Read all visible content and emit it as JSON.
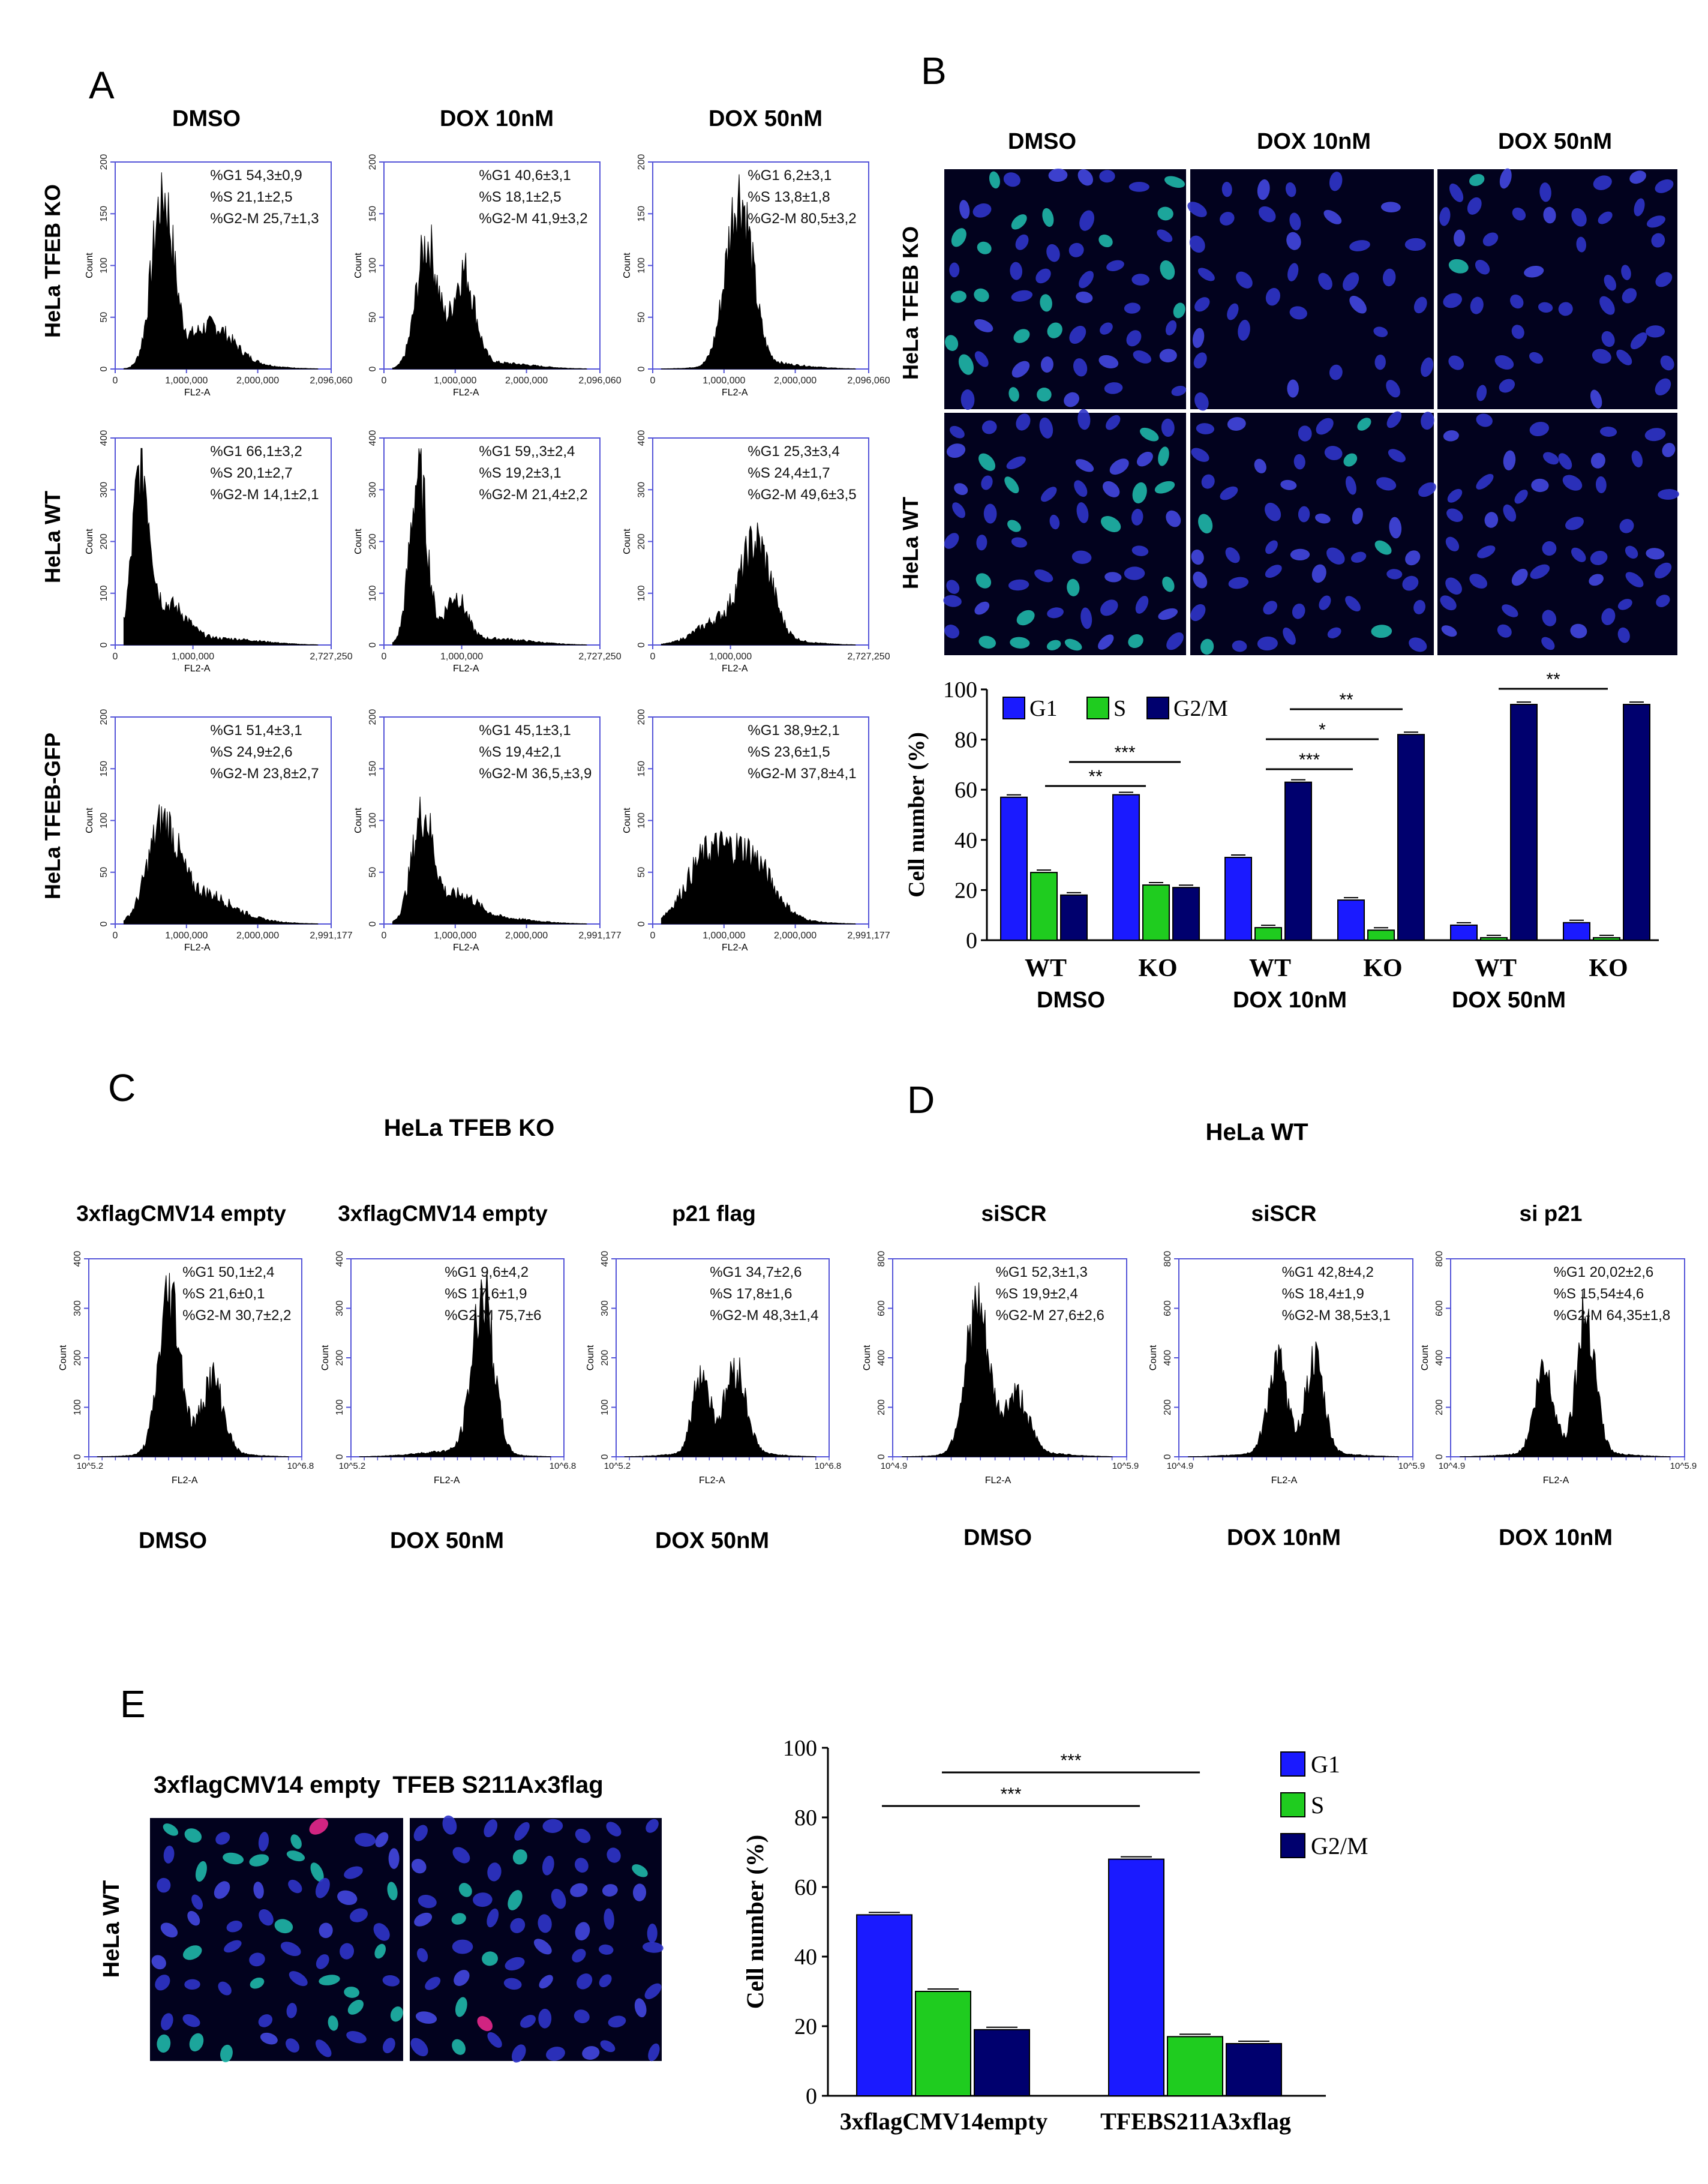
{
  "panels": {
    "A": {
      "letter": "A",
      "columns": [
        "DMSO",
        "DOX 10nM",
        "DOX 50nM"
      ],
      "rows": [
        {
          "label": "HeLa TFEB KO",
          "ymax": 200,
          "yticks": [
            "0",
            "50",
            "100",
            "150",
            "200"
          ],
          "xticks": [
            "0",
            "1,000,000",
            "2,000,000",
            "2,096,060"
          ],
          "xlabel": "FL2-A",
          "ylabel": "Count",
          "hists": [
            {
              "stats": [
                "%G1 54,3±0,9",
                "%S 21,1±2,5",
                "%G2-M 25,7±1,3"
              ],
              "peaks": [
                [
                  0.22,
                  0.82,
                  0.05
                ],
                [
                  0.44,
                  0.18,
                  0.1
                ]
              ]
            },
            {
              "stats": [
                "%G1 40,6±3,1",
                "%S 18,1±2,5",
                "%G2-M 41,9±3,2"
              ],
              "peaks": [
                [
                  0.2,
                  0.6,
                  0.05
                ],
                [
                  0.37,
                  0.45,
                  0.05
                ]
              ]
            },
            {
              "stats": [
                "%G1 6,2±3,1",
                "%S 13,8±1,8",
                "%G2-M 80,5±3,2"
              ],
              "peaks": [
                [
                  0.4,
                  0.82,
                  0.06
                ]
              ]
            }
          ]
        },
        {
          "label": "HeLa WT",
          "ymax": 400,
          "yticks": [
            "0",
            "100",
            "200",
            "300",
            "400"
          ],
          "xticks": [
            "0",
            "1,000,000",
            "2,727,250"
          ],
          "xlabel": "FL2-A",
          "ylabel": "Count",
          "hists": [
            {
              "stats": [
                "%G1 66,1±3,2",
                "%S 20,1±2,7",
                "%G2-M 14,1±2,1"
              ],
              "peaks": [
                [
                  0.12,
                  0.82,
                  0.04
                ],
                [
                  0.25,
                  0.18,
                  0.08
                ]
              ]
            },
            {
              "stats": [
                "%G1 59,,3±2,4",
                "%S 19,2±3,1",
                "%G2-M 21,4±2,2"
              ],
              "peaks": [
                [
                  0.16,
                  0.82,
                  0.04
                ],
                [
                  0.33,
                  0.22,
                  0.05
                ]
              ]
            },
            {
              "stats": [
                "%G1 25,3±3,4",
                "%S 24,4±1,7",
                "%G2-M 49,6±3,5"
              ],
              "peaks": [
                [
                  0.3,
                  0.1,
                  0.1
                ],
                [
                  0.48,
                  0.45,
                  0.07
                ]
              ]
            }
          ]
        },
        {
          "label": "HeLa TFEB-GFP",
          "ymax": 200,
          "yticks": [
            "0",
            "50",
            "100",
            "150",
            "200"
          ],
          "xticks": [
            "0",
            "1,000,000",
            "2,000,000",
            "2,991,177"
          ],
          "xlabel": "FL2-A",
          "ylabel": "Count",
          "hists": [
            {
              "stats": [
                "%G1 51,4±3,1",
                "%S 24,9±2,6",
                "%G2-M 23,8±2,7"
              ],
              "peaks": [
                [
                  0.22,
                  0.45,
                  0.07
                ],
                [
                  0.4,
                  0.12,
                  0.12
                ]
              ]
            },
            {
              "stats": [
                "%G1 45,1±3,1",
                "%S 19,4±2,1",
                "%G2-M 36,5,±3,9"
              ],
              "peaks": [
                [
                  0.18,
                  0.52,
                  0.05
                ],
                [
                  0.35,
                  0.12,
                  0.08
                ]
              ]
            },
            {
              "stats": [
                "%G1 38,9±2,1",
                "%S 23,6±1,5",
                "%G2-M 37,8±4,1"
              ],
              "peaks": [
                [
                  0.25,
                  0.3,
                  0.1
                ],
                [
                  0.45,
                  0.28,
                  0.1
                ]
              ]
            }
          ]
        }
      ]
    },
    "B": {
      "letter": "B",
      "columns": [
        "DMSO",
        "DOX 10nM",
        "DOX 50nM"
      ],
      "rows": [
        "HeLa TFEB KO",
        "HeLa WT"
      ],
      "chart_data": {
        "type": "bar",
        "groups": [
          "DMSO",
          "DOX 10nM",
          "DOX 50nM"
        ],
        "categories": [
          "WT",
          "KO",
          "WT",
          "KO",
          "WT",
          "KO"
        ],
        "series": [
          {
            "name": "G1",
            "color": "#1a1aff",
            "values": [
              57,
              58,
              33,
              16,
              6,
              7
            ]
          },
          {
            "name": "S",
            "color": "#1fcc1f",
            "values": [
              27,
              22,
              5,
              4,
              1,
              1
            ]
          },
          {
            "name": "G2/M",
            "color": "#00006e",
            "values": [
              18,
              21,
              63,
              82,
              94,
              94
            ]
          }
        ],
        "ylabel": "Cell number (%)",
        "ylim": [
          0,
          100
        ],
        "yticks": [
          "0",
          "20",
          "40",
          "60",
          "80",
          "100"
        ],
        "significance": [
          "**",
          "***",
          "***",
          "*",
          "**",
          "**"
        ]
      }
    },
    "C": {
      "letter": "C",
      "title": "HeLa TFEB KO",
      "ymax": 400,
      "yticks": [
        "0",
        "100",
        "200",
        "300",
        "400"
      ],
      "xlabel": "FL2-A",
      "ylabel": "Count",
      "xtick_left": "10^5.2",
      "xtick_right": "10^6.8",
      "hists": [
        {
          "header": "3xflagCMV14 empty",
          "footer": "DMSO",
          "stats": [
            "%G1 50,1±2,4",
            "%S 21,6±0,1",
            "%G2-M 30,7±2,2"
          ],
          "peaks": [
            [
              0.38,
              0.8,
              0.05
            ],
            [
              0.58,
              0.37,
              0.05
            ]
          ]
        },
        {
          "header": "3xflagCMV14 empty",
          "footer": "DOX 50nM",
          "stats": [
            "%G1 9,6±4,2",
            "%S 17,6±1,9",
            "%G2-M 75,7±6"
          ],
          "peaks": [
            [
              0.62,
              0.8,
              0.05
            ]
          ]
        },
        {
          "header": "p21 flag",
          "footer": "DOX 50nM",
          "stats": [
            "%G1 34,7±2,6",
            "%S 17,8±1,6",
            "%G2-M 48,3±1,4"
          ],
          "peaks": [
            [
              0.4,
              0.4,
              0.04
            ],
            [
              0.56,
              0.42,
              0.05
            ]
          ]
        }
      ]
    },
    "D": {
      "letter": "D",
      "title": "HeLa WT",
      "ymax": 800,
      "yticks": [
        "0",
        "200",
        "400",
        "600",
        "800"
      ],
      "xlabel": "FL2-A",
      "ylabel": "Count",
      "xtick_left": "10^4.9",
      "xtick_right": "10^5.9",
      "hists": [
        {
          "header": "siSCR",
          "footer": "DMSO",
          "stats": [
            "%G1 52,3±1,3",
            "%S 19,9±2,4",
            "%G2-M 27,6±2,6"
          ],
          "peaks": [
            [
              0.36,
              0.72,
              0.05
            ],
            [
              0.53,
              0.28,
              0.05
            ]
          ]
        },
        {
          "header": "siSCR",
          "footer": "DOX 10nM",
          "stats": [
            "%G1 42,8±4,2",
            "%S 18,4±1,9",
            "%G2-M 38,5±3,1"
          ],
          "peaks": [
            [
              0.42,
              0.45,
              0.04
            ],
            [
              0.58,
              0.45,
              0.04
            ]
          ]
        },
        {
          "header": "si p21",
          "footer": "DOX 10nM",
          "stats": [
            "%G1 20,02±2,6",
            "%S 15,54±4,6",
            "%G2-M 64,35±1,8"
          ],
          "peaks": [
            [
              0.4,
              0.42,
              0.04
            ],
            [
              0.58,
              0.7,
              0.04
            ]
          ]
        }
      ]
    },
    "E": {
      "letter": "E",
      "row": "HeLa WT",
      "image_labels": [
        "3xflagCMV14 empty",
        "TFEB S211Ax3flag"
      ],
      "chart_data": {
        "type": "bar",
        "categories": [
          "3xflagCMV14empty",
          "TFEBS211A3xflag"
        ],
        "series": [
          {
            "name": "G1",
            "color": "#1a1aff",
            "values": [
              52,
              68
            ]
          },
          {
            "name": "S",
            "color": "#1fcc1f",
            "values": [
              30,
              17
            ]
          },
          {
            "name": "G2/M",
            "color": "#00006e",
            "values": [
              19,
              15
            ]
          }
        ],
        "ylabel": "Cell number (%)",
        "ylim": [
          0,
          100
        ],
        "yticks": [
          "0",
          "20",
          "40",
          "60",
          "80",
          "100"
        ],
        "significance": [
          "***",
          "***"
        ]
      }
    }
  }
}
